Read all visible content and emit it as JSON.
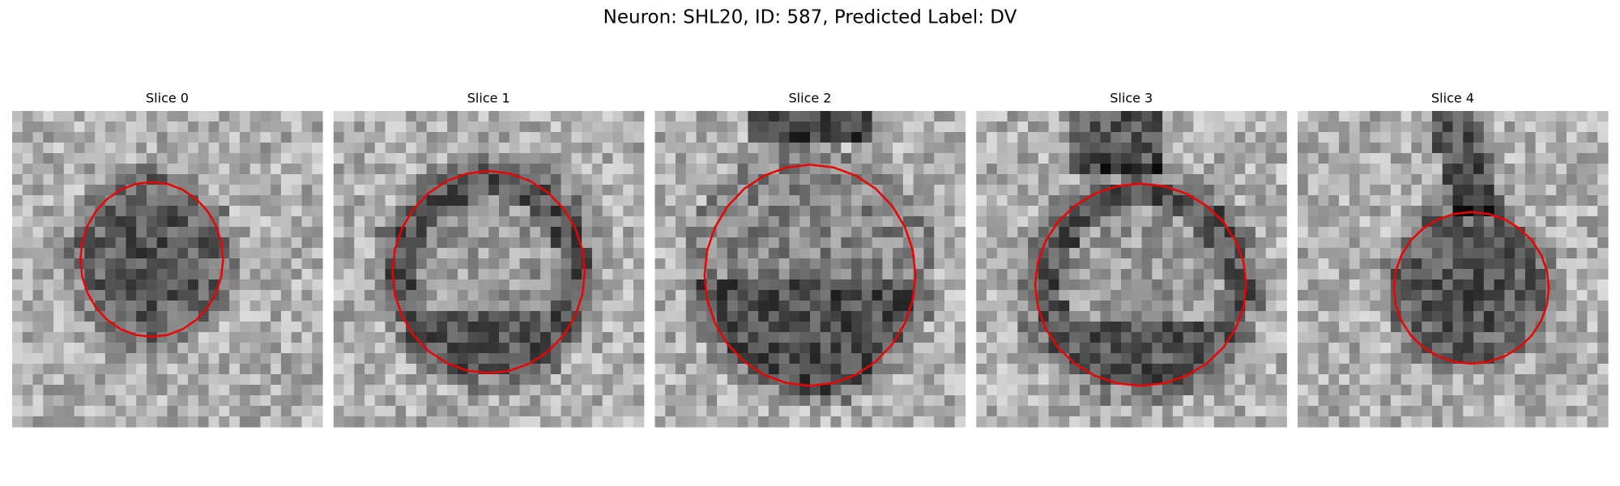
{
  "title": "Neuron: SHL20, ID: 587, Predicted Label: DV",
  "panels": [
    {
      "title": "Slice 0"
    },
    {
      "title": "Slice 1"
    },
    {
      "title": "Slice 2"
    },
    {
      "title": "Slice 3"
    },
    {
      "title": "Slice 4"
    }
  ]
}
